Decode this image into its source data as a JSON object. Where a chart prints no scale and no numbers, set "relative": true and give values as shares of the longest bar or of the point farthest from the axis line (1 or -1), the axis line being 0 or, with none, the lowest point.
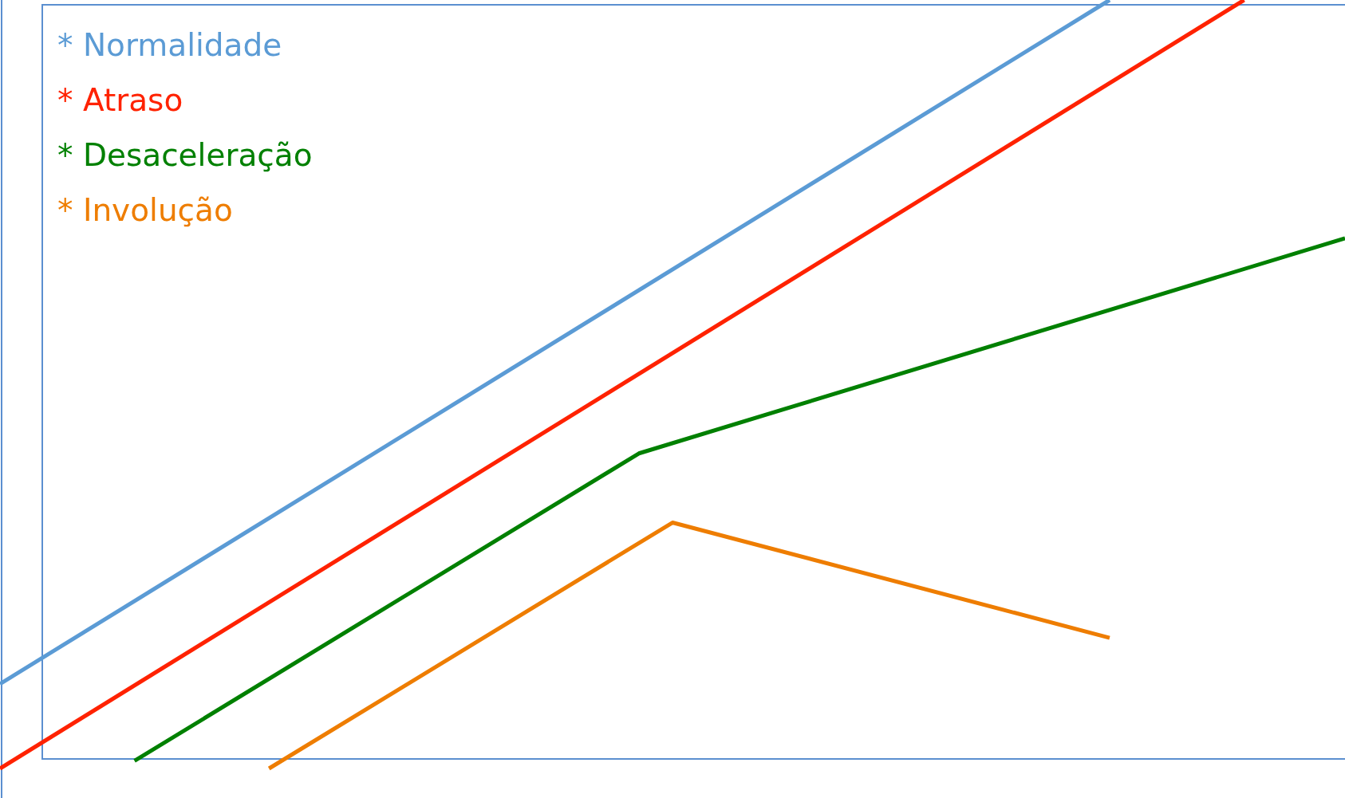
{
  "chart_data": {
    "type": "line",
    "relative": true,
    "categories": [
      null,
      null,
      null,
      null,
      null,
      null,
      null,
      null,
      null,
      null,
      null,
      null,
      null,
      null,
      null,
      null,
      null,
      null,
      null,
      null,
      null,
      null,
      null,
      null,
      null,
      null,
      null,
      null,
      null,
      null,
      null,
      null,
      null,
      null,
      null,
      null,
      null,
      null,
      null,
      null,
      null
    ],
    "series": [
      {
        "name": "* Normalidade",
        "color": "#5b9bd5",
        "values": [
          0.11,
          null,
          null,
          null,
          null,
          null,
          null,
          null,
          null,
          null,
          null,
          null,
          null,
          null,
          null,
          null,
          null,
          null,
          null,
          null,
          null,
          null,
          null,
          null,
          null,
          null,
          null,
          null,
          null,
          null,
          null,
          null,
          null,
          1,
          null,
          null,
          null,
          null,
          null,
          null,
          null
        ]
      },
      {
        "name": "* Atraso",
        "color": "#ff2200",
        "values": [
          0,
          null,
          null,
          null,
          null,
          null,
          null,
          null,
          null,
          null,
          null,
          null,
          null,
          null,
          null,
          null,
          null,
          null,
          null,
          null,
          null,
          null,
          null,
          null,
          null,
          null,
          null,
          null,
          null,
          null,
          null,
          null,
          null,
          null,
          null,
          null,
          null,
          1,
          null,
          null,
          null
        ]
      },
      {
        "name": "* Desaceleração",
        "color": "#008000",
        "values": [
          null,
          null,
          null,
          null,
          0.01,
          null,
          null,
          null,
          null,
          null,
          null,
          null,
          null,
          null,
          null,
          null,
          null,
          null,
          null,
          0.41,
          null,
          null,
          null,
          null,
          null,
          null,
          null,
          null,
          null,
          null,
          null,
          null,
          null,
          null,
          null,
          null,
          null,
          null,
          null,
          null,
          0.69
        ]
      },
      {
        "name": "* Involução",
        "color": "#ee7d00",
        "values": [
          null,
          null,
          null,
          null,
          null,
          null,
          null,
          null,
          0,
          null,
          null,
          null,
          null,
          null,
          null,
          null,
          null,
          null,
          null,
          null,
          0.32,
          null,
          null,
          null,
          null,
          null,
          null,
          null,
          null,
          null,
          null,
          null,
          null,
          0.17,
          null,
          null,
          null,
          null,
          null,
          null,
          null
        ]
      }
    ]
  }
}
